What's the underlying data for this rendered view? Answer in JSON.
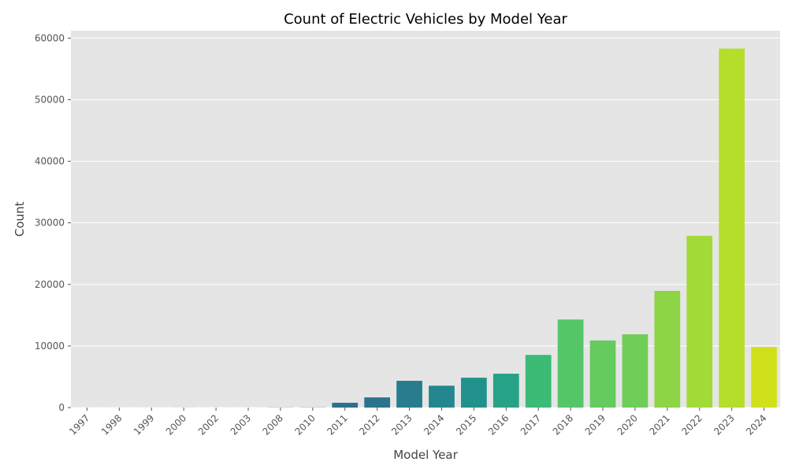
{
  "chart_data": {
    "type": "bar",
    "title": "Count of Electric Vehicles by Model Year",
    "xlabel": "Model Year",
    "ylabel": "Count",
    "categories": [
      "1997",
      "1998",
      "1999",
      "2000",
      "2002",
      "2003",
      "2008",
      "2010",
      "2011",
      "2012",
      "2013",
      "2014",
      "2015",
      "2016",
      "2017",
      "2018",
      "2019",
      "2020",
      "2021",
      "2022",
      "2023",
      "2024"
    ],
    "values": [
      1,
      1,
      5,
      7,
      2,
      1,
      20,
      24,
      780,
      1650,
      4350,
      3550,
      4850,
      5500,
      8550,
      14300,
      10900,
      11900,
      18950,
      27900,
      58300,
      9850
    ],
    "colors": [
      "#46327e",
      "#46307e",
      "#472f7d",
      "#482d7b",
      "#482a7a",
      "#482777",
      "#472d7b",
      "#3a548c",
      "#2e6f8e",
      "#2b748e",
      "#287c8e",
      "#24868e",
      "#21918c",
      "#26a286",
      "#3bbb75",
      "#55c667",
      "#65cb5e",
      "#6ece58",
      "#8dd544",
      "#a2da37",
      "#b5de2b",
      "#d0e11c"
    ],
    "ylim": [
      0,
      61200
    ],
    "yticks": [
      0,
      10000,
      20000,
      30000,
      40000,
      50000,
      60000
    ],
    "grid": true,
    "plot_background": "#e5e5e5"
  }
}
